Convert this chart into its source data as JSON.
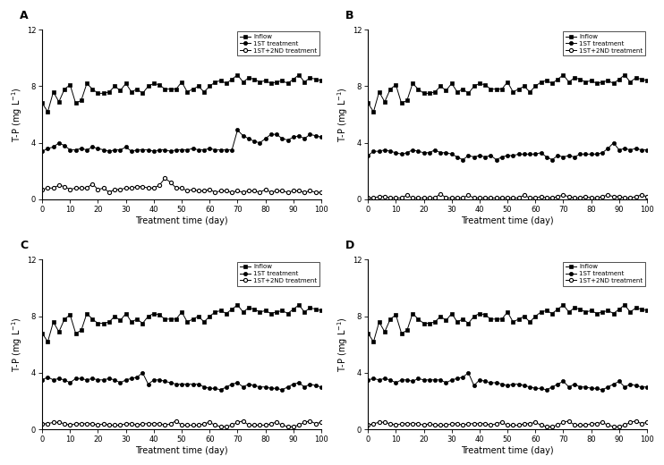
{
  "panels": [
    "A",
    "B",
    "C",
    "D"
  ],
  "xlabel": "Treatment time (day)",
  "ylabel": "T-P (mg L$^{-1}$)",
  "ylim": [
    0,
    12
  ],
  "yticks": [
    0,
    4,
    8,
    12
  ],
  "xlim": [
    0,
    100
  ],
  "xticks": [
    0,
    10,
    20,
    30,
    40,
    50,
    60,
    70,
    80,
    90,
    100
  ],
  "legend_labels": [
    "Inflow",
    "1ST treatment",
    "1ST+2ND treatment"
  ],
  "x_inflow": [
    0,
    2,
    4,
    6,
    8,
    10,
    12,
    14,
    16,
    18,
    20,
    22,
    24,
    26,
    28,
    30,
    32,
    34,
    36,
    38,
    40,
    42,
    44,
    46,
    48,
    50,
    52,
    54,
    56,
    58,
    60,
    62,
    64,
    66,
    68,
    70,
    72,
    74,
    76,
    78,
    80,
    82,
    84,
    86,
    88,
    90,
    92,
    94,
    96,
    98,
    100
  ],
  "x_st1": [
    0,
    2,
    4,
    6,
    8,
    10,
    12,
    14,
    16,
    18,
    20,
    22,
    24,
    26,
    28,
    30,
    32,
    34,
    36,
    38,
    40,
    42,
    44,
    46,
    48,
    50,
    52,
    54,
    56,
    58,
    60,
    62,
    64,
    66,
    68,
    70,
    72,
    74,
    76,
    78,
    80,
    82,
    84,
    86,
    88,
    90,
    92,
    94,
    96,
    98,
    100
  ],
  "x_st2": [
    0,
    2,
    4,
    6,
    8,
    10,
    12,
    14,
    16,
    18,
    20,
    22,
    24,
    26,
    28,
    30,
    32,
    34,
    36,
    38,
    40,
    42,
    44,
    46,
    48,
    50,
    52,
    54,
    56,
    58,
    60,
    62,
    64,
    66,
    68,
    70,
    72,
    74,
    76,
    78,
    80,
    82,
    84,
    86,
    88,
    90,
    92,
    94,
    96,
    98,
    100
  ],
  "inflow_A": [
    6.8,
    6.2,
    7.6,
    6.9,
    7.8,
    8.1,
    6.8,
    7.0,
    8.2,
    7.8,
    7.5,
    7.5,
    7.6,
    8.0,
    7.7,
    8.2,
    7.6,
    7.8,
    7.5,
    8.0,
    8.2,
    8.1,
    7.8,
    7.8,
    7.8,
    8.3,
    7.6,
    7.8,
    8.0,
    7.6,
    8.0,
    8.3,
    8.4,
    8.2,
    8.5,
    8.8,
    8.3,
    8.6,
    8.5,
    8.3,
    8.4,
    8.2,
    8.3,
    8.4,
    8.2,
    8.5,
    8.8,
    8.3,
    8.6,
    8.5,
    8.4
  ],
  "st1_A": [
    3.4,
    3.6,
    3.7,
    4.0,
    3.8,
    3.5,
    3.5,
    3.6,
    3.5,
    3.7,
    3.6,
    3.5,
    3.4,
    3.5,
    3.5,
    3.7,
    3.4,
    3.5,
    3.5,
    3.5,
    3.4,
    3.5,
    3.5,
    3.4,
    3.5,
    3.5,
    3.5,
    3.6,
    3.5,
    3.5,
    3.6,
    3.5,
    3.5,
    3.5,
    3.5,
    4.9,
    4.5,
    4.3,
    4.1,
    4.0,
    4.3,
    4.6,
    4.6,
    4.3,
    4.2,
    4.4,
    4.5,
    4.3,
    4.6,
    4.5,
    4.4
  ],
  "st2_A": [
    0.7,
    0.8,
    0.8,
    1.0,
    0.9,
    0.7,
    0.8,
    0.8,
    0.8,
    1.1,
    0.7,
    0.8,
    0.5,
    0.7,
    0.7,
    0.8,
    0.8,
    0.9,
    0.9,
    0.8,
    0.8,
    1.0,
    1.5,
    1.2,
    0.8,
    0.8,
    0.6,
    0.7,
    0.6,
    0.6,
    0.7,
    0.5,
    0.6,
    0.6,
    0.5,
    0.6,
    0.5,
    0.6,
    0.6,
    0.5,
    0.7,
    0.5,
    0.6,
    0.6,
    0.5,
    0.6,
    0.6,
    0.5,
    0.6,
    0.5,
    0.5
  ],
  "inflow_B": [
    6.8,
    6.2,
    7.6,
    6.9,
    7.8,
    8.1,
    6.8,
    7.0,
    8.2,
    7.8,
    7.5,
    7.5,
    7.6,
    8.0,
    7.7,
    8.2,
    7.6,
    7.8,
    7.5,
    8.0,
    8.2,
    8.1,
    7.8,
    7.8,
    7.8,
    8.3,
    7.6,
    7.8,
    8.0,
    7.6,
    8.0,
    8.3,
    8.4,
    8.2,
    8.5,
    8.8,
    8.3,
    8.6,
    8.5,
    8.3,
    8.4,
    8.2,
    8.3,
    8.4,
    8.2,
    8.5,
    8.8,
    8.3,
    8.6,
    8.5,
    8.4
  ],
  "st1_B": [
    3.1,
    3.4,
    3.4,
    3.5,
    3.4,
    3.3,
    3.2,
    3.3,
    3.5,
    3.4,
    3.3,
    3.3,
    3.5,
    3.3,
    3.3,
    3.2,
    3.0,
    2.8,
    3.1,
    3.0,
    3.1,
    3.0,
    3.1,
    2.8,
    3.0,
    3.1,
    3.1,
    3.2,
    3.2,
    3.2,
    3.2,
    3.3,
    3.0,
    2.8,
    3.1,
    3.0,
    3.1,
    3.0,
    3.2,
    3.2,
    3.2,
    3.2,
    3.3,
    3.6,
    4.0,
    3.5,
    3.6,
    3.5,
    3.6,
    3.5,
    3.5
  ],
  "st2_B": [
    0.1,
    0.1,
    0.2,
    0.2,
    0.1,
    0.1,
    0.1,
    0.3,
    0.1,
    0.1,
    0.1,
    0.1,
    0.1,
    0.4,
    0.1,
    0.1,
    0.1,
    0.1,
    0.3,
    0.1,
    0.1,
    0.1,
    0.1,
    0.1,
    0.1,
    0.1,
    0.1,
    0.1,
    0.3,
    0.1,
    0.1,
    0.2,
    0.1,
    0.1,
    0.2,
    0.3,
    0.2,
    0.1,
    0.1,
    0.2,
    0.1,
    0.1,
    0.2,
    0.3,
    0.2,
    0.2,
    0.1,
    0.1,
    0.2,
    0.3,
    0.2
  ],
  "inflow_C": [
    6.8,
    6.2,
    7.6,
    6.9,
    7.8,
    8.1,
    6.8,
    7.0,
    8.2,
    7.8,
    7.5,
    7.5,
    7.6,
    8.0,
    7.7,
    8.2,
    7.6,
    7.8,
    7.5,
    8.0,
    8.2,
    8.1,
    7.8,
    7.8,
    7.8,
    8.3,
    7.6,
    7.8,
    8.0,
    7.6,
    8.0,
    8.3,
    8.4,
    8.2,
    8.5,
    8.8,
    8.3,
    8.6,
    8.5,
    8.3,
    8.4,
    8.2,
    8.3,
    8.4,
    8.2,
    8.5,
    8.8,
    8.3,
    8.6,
    8.5,
    8.4
  ],
  "st1_C": [
    3.5,
    3.7,
    3.5,
    3.6,
    3.5,
    3.3,
    3.6,
    3.6,
    3.5,
    3.6,
    3.5,
    3.5,
    3.6,
    3.5,
    3.3,
    3.5,
    3.6,
    3.7,
    4.0,
    3.2,
    3.5,
    3.5,
    3.4,
    3.3,
    3.2,
    3.2,
    3.2,
    3.2,
    3.2,
    3.0,
    2.9,
    2.9,
    2.8,
    3.0,
    3.2,
    3.3,
    3.0,
    3.2,
    3.1,
    3.0,
    3.0,
    2.9,
    2.9,
    2.8,
    3.0,
    3.2,
    3.3,
    3.0,
    3.2,
    3.1,
    3.0
  ],
  "st2_C": [
    0.4,
    0.4,
    0.5,
    0.5,
    0.4,
    0.3,
    0.4,
    0.4,
    0.4,
    0.4,
    0.3,
    0.4,
    0.3,
    0.3,
    0.3,
    0.4,
    0.4,
    0.3,
    0.4,
    0.4,
    0.4,
    0.4,
    0.3,
    0.4,
    0.6,
    0.3,
    0.3,
    0.3,
    0.3,
    0.4,
    0.5,
    0.3,
    0.2,
    0.2,
    0.3,
    0.5,
    0.6,
    0.3,
    0.3,
    0.3,
    0.3,
    0.4,
    0.5,
    0.3,
    0.2,
    0.2,
    0.3,
    0.5,
    0.6,
    0.4,
    0.5
  ],
  "inflow_D": [
    6.8,
    6.2,
    7.6,
    6.9,
    7.8,
    8.1,
    6.8,
    7.0,
    8.2,
    7.8,
    7.5,
    7.5,
    7.6,
    8.0,
    7.7,
    8.2,
    7.6,
    7.8,
    7.5,
    8.0,
    8.2,
    8.1,
    7.8,
    7.8,
    7.8,
    8.3,
    7.6,
    7.8,
    8.0,
    7.6,
    8.0,
    8.3,
    8.4,
    8.2,
    8.5,
    8.8,
    8.3,
    8.6,
    8.5,
    8.3,
    8.4,
    8.2,
    8.3,
    8.4,
    8.2,
    8.5,
    8.8,
    8.3,
    8.6,
    8.5,
    8.4
  ],
  "st1_D": [
    3.5,
    3.6,
    3.5,
    3.6,
    3.5,
    3.3,
    3.5,
    3.5,
    3.4,
    3.6,
    3.5,
    3.5,
    3.5,
    3.5,
    3.3,
    3.5,
    3.6,
    3.7,
    4.0,
    3.1,
    3.5,
    3.4,
    3.3,
    3.3,
    3.2,
    3.1,
    3.2,
    3.2,
    3.1,
    3.0,
    2.9,
    2.9,
    2.8,
    3.0,
    3.2,
    3.4,
    3.0,
    3.2,
    3.0,
    3.0,
    2.9,
    2.9,
    2.8,
    3.0,
    3.2,
    3.4,
    3.0,
    3.2,
    3.1,
    3.0,
    3.0
  ],
  "st2_D": [
    0.3,
    0.4,
    0.5,
    0.5,
    0.4,
    0.3,
    0.4,
    0.4,
    0.4,
    0.4,
    0.3,
    0.4,
    0.3,
    0.3,
    0.3,
    0.4,
    0.4,
    0.3,
    0.4,
    0.4,
    0.4,
    0.4,
    0.3,
    0.4,
    0.5,
    0.3,
    0.3,
    0.3,
    0.4,
    0.4,
    0.5,
    0.3,
    0.2,
    0.2,
    0.3,
    0.5,
    0.6,
    0.3,
    0.3,
    0.3,
    0.4,
    0.4,
    0.5,
    0.3,
    0.2,
    0.2,
    0.3,
    0.5,
    0.6,
    0.4,
    0.5
  ]
}
